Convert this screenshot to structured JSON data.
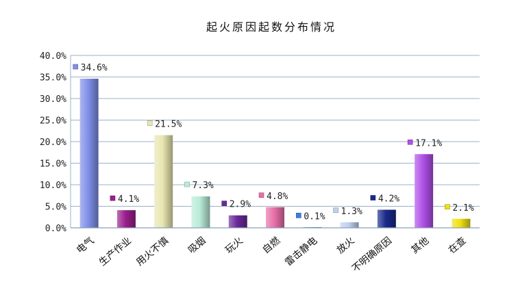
{
  "chart_data": {
    "type": "bar",
    "title": "起火原因起数分布情况",
    "xlabel": "",
    "ylabel": "",
    "categories": [
      "电气",
      "生产作业",
      "用火不慎",
      "吸烟",
      "玩火",
      "自燃",
      "雷击静电",
      "放火",
      "不明确原因",
      "其他",
      "在查"
    ],
    "values": [
      34.6,
      4.1,
      21.5,
      7.3,
      2.9,
      4.8,
      0.1,
      1.3,
      4.2,
      17.1,
      2.1
    ],
    "value_labels": [
      "34.6%",
      "4.1%",
      "21.5%",
      "7.3%",
      "2.9%",
      "4.8%",
      "0.1%",
      "1.3%",
      "4.2%",
      "17.1%",
      "2.1%"
    ],
    "colors": [
      "#7f8fe8",
      "#9a1f8c",
      "#e8e6b0",
      "#b8ecd8",
      "#6a2a9a",
      "#e870a8",
      "#3a7ee0",
      "#c0d0f0",
      "#1a2a8a",
      "#b050e8",
      "#f0e010"
    ],
    "ylim": [
      0,
      40
    ],
    "yticks": [
      0,
      5,
      10,
      15,
      20,
      25,
      30,
      35,
      40
    ],
    "ytick_labels": [
      "0.0%",
      "5.0%",
      "10.0%",
      "15.0%",
      "20.0%",
      "25.0%",
      "30.0%",
      "35.0%",
      "40.0%"
    ],
    "grid": true,
    "legend": "none"
  }
}
